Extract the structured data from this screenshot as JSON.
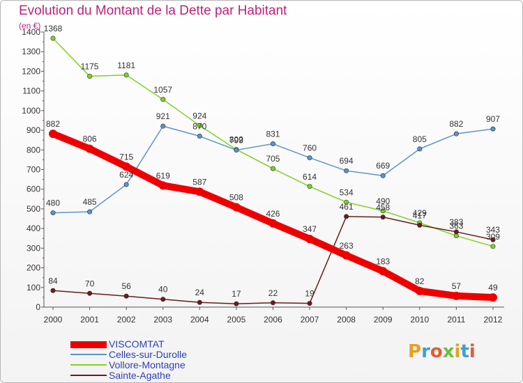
{
  "header": {
    "title": "Evolution du Montant de la Dette par Habitant",
    "unit": "(en €)"
  },
  "brand": {
    "text": "Proxiti",
    "colors": [
      "#e8a020",
      "#3aa0d8",
      "#e65a30",
      "#6bbf3a",
      "#e8a020",
      "#3aa0d8",
      "#e65a30"
    ]
  },
  "chart_data": {
    "type": "line",
    "title": "Evolution du Montant de la Dette par Habitant",
    "ylabel": "(en €)",
    "xlabel": "",
    "x": [
      "2000",
      "2001",
      "2002",
      "2003",
      "2004",
      "2005",
      "2006",
      "2007",
      "2008",
      "2009",
      "2010",
      "2011",
      "2012"
    ],
    "yticks": [
      0,
      100,
      200,
      300,
      400,
      500,
      600,
      700,
      800,
      900,
      1000,
      1100,
      1200,
      1300,
      1400
    ],
    "ylim": [
      0,
      1400
    ],
    "grid": false,
    "legend_position": "bottom-left",
    "series": [
      {
        "name": "VISCOMTAT",
        "color": "#ee0000",
        "values": [
          882,
          806,
          715,
          619,
          587,
          508,
          426,
          347,
          263,
          183,
          82,
          57,
          49
        ]
      },
      {
        "name": "Celles-sur-Durolle",
        "color": "#5b95c9",
        "values": [
          480,
          485,
          624,
          921,
          870,
          799,
          831,
          760,
          694,
          669,
          805,
          882,
          907
        ]
      },
      {
        "name": "Vollore-Montagne",
        "color": "#7ed321",
        "values": [
          1368,
          1175,
          1181,
          1057,
          924,
          802,
          705,
          614,
          534,
          490,
          429,
          363,
          309
        ]
      },
      {
        "name": "Sainte-Agathe",
        "color": "#6b1a1a",
        "values": [
          84,
          70,
          56,
          40,
          24,
          17,
          22,
          19,
          461,
          458,
          417,
          383,
          343
        ]
      }
    ]
  }
}
